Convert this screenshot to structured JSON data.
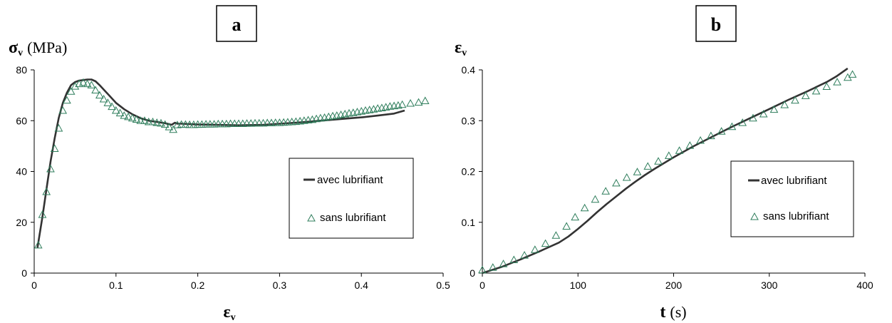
{
  "chart_data": [
    {
      "type": "line",
      "panel_label": "a",
      "ylabel": {
        "symbol": "σ",
        "sub": "v",
        "unit": "(MPa)"
      },
      "xlabel": {
        "symbol": "ε",
        "sub": "v",
        "unit": ""
      },
      "xlim": [
        0,
        0.5
      ],
      "ylim": [
        0,
        80
      ],
      "xticks": [
        "0",
        "0.1",
        "0.2",
        "0.3",
        "0.4",
        "0.5"
      ],
      "yticks": [
        "0",
        "20",
        "40",
        "60",
        "80"
      ],
      "grid": false,
      "legend_position": "right",
      "series": [
        {
          "name": "avec lubrifiant",
          "style": "line",
          "color": "#333333",
          "x": [
            0.004,
            0.01,
            0.015,
            0.02,
            0.025,
            0.03,
            0.035,
            0.04,
            0.045,
            0.05,
            0.055,
            0.06,
            0.065,
            0.07,
            0.075,
            0.08,
            0.09,
            0.1,
            0.11,
            0.12,
            0.13,
            0.14,
            0.15,
            0.16,
            0.168,
            0.172,
            0.175,
            0.18,
            0.2,
            0.22,
            0.25,
            0.28,
            0.3,
            0.32,
            0.35,
            0.38,
            0.4,
            0.42,
            0.44,
            0.453
          ],
          "y": [
            10,
            22,
            33,
            44,
            53,
            61,
            67,
            71,
            74,
            75.2,
            75.8,
            76,
            76.2,
            76.2,
            75.5,
            74,
            70.5,
            67,
            64.5,
            62.5,
            61,
            60,
            59.5,
            59,
            58.4,
            59.2,
            58.8,
            58.8,
            58.5,
            58.4,
            58.2,
            58.4,
            58.8,
            59.2,
            60,
            60.8,
            61.3,
            62,
            62.8,
            64
          ]
        },
        {
          "name": "sans lubrifiant",
          "style": "marker",
          "marker": "triangle",
          "color": "#2e7d5b",
          "x": [
            0.005,
            0.01,
            0.015,
            0.02,
            0.025,
            0.03,
            0.035,
            0.04,
            0.045,
            0.05,
            0.055,
            0.06,
            0.065,
            0.07,
            0.075,
            0.08,
            0.085,
            0.09,
            0.095,
            0.1,
            0.105,
            0.11,
            0.115,
            0.12,
            0.125,
            0.13,
            0.135,
            0.14,
            0.145,
            0.15,
            0.155,
            0.16,
            0.165,
            0.17,
            0.175,
            0.18,
            0.185,
            0.19,
            0.195,
            0.2,
            0.205,
            0.21,
            0.215,
            0.22,
            0.225,
            0.23,
            0.235,
            0.24,
            0.245,
            0.25,
            0.255,
            0.26,
            0.265,
            0.27,
            0.275,
            0.28,
            0.285,
            0.29,
            0.295,
            0.3,
            0.305,
            0.31,
            0.315,
            0.32,
            0.325,
            0.33,
            0.335,
            0.34,
            0.345,
            0.35,
            0.355,
            0.36,
            0.365,
            0.37,
            0.375,
            0.38,
            0.385,
            0.39,
            0.395,
            0.4,
            0.405,
            0.41,
            0.415,
            0.42,
            0.425,
            0.43,
            0.435,
            0.44,
            0.445,
            0.45,
            0.46,
            0.47,
            0.478
          ],
          "y": [
            11,
            23,
            32,
            41,
            49,
            57,
            64,
            68,
            71.5,
            73.5,
            74.5,
            75,
            74.5,
            74,
            72,
            70,
            68.5,
            67,
            65.5,
            64,
            63,
            62,
            61.5,
            61,
            60.5,
            60,
            60,
            59.5,
            59.5,
            59.2,
            59,
            58.5,
            57.5,
            56.5,
            58.3,
            58.5,
            58.5,
            58.4,
            58.4,
            58.5,
            58.5,
            58.6,
            58.6,
            58.6,
            58.7,
            58.7,
            58.7,
            58.8,
            58.8,
            58.8,
            58.8,
            58.9,
            58.9,
            59,
            59,
            59,
            59.1,
            59.1,
            59.2,
            59.2,
            59.3,
            59.4,
            59.5,
            59.6,
            59.8,
            60,
            60.2,
            60.4,
            60.7,
            61,
            61.2,
            61.5,
            61.8,
            62,
            62.3,
            62.6,
            62.9,
            63.1,
            63.4,
            63.7,
            64,
            64.2,
            64.5,
            64.8,
            65,
            65.3,
            65.6,
            65.8,
            66,
            66.3,
            66.8,
            67.2,
            67.8
          ]
        }
      ]
    },
    {
      "type": "line",
      "panel_label": "b",
      "ylabel": {
        "symbol": "ε",
        "sub": "v",
        "unit": ""
      },
      "xlabel": {
        "symbol": "t",
        "sub": "",
        "unit": "(s)"
      },
      "xlim": [
        0,
        400
      ],
      "ylim": [
        0,
        0.4
      ],
      "xticks": [
        "0",
        "100",
        "200",
        "300",
        "400"
      ],
      "yticks": [
        "0",
        "0.1",
        "0.2",
        "0.3",
        "0.4"
      ],
      "grid": false,
      "legend_position": "right",
      "series": [
        {
          "name": "avec lubrifiant",
          "style": "line",
          "color": "#333333",
          "x": [
            0,
            20,
            40,
            60,
            80,
            90,
            100,
            110,
            120,
            130,
            140,
            150,
            160,
            170,
            180,
            200,
            220,
            240,
            260,
            280,
            300,
            320,
            340,
            360,
            370,
            382
          ],
          "y": [
            0,
            0.012,
            0.027,
            0.043,
            0.06,
            0.072,
            0.087,
            0.103,
            0.12,
            0.136,
            0.151,
            0.166,
            0.18,
            0.193,
            0.205,
            0.228,
            0.249,
            0.268,
            0.287,
            0.305,
            0.323,
            0.341,
            0.358,
            0.376,
            0.387,
            0.403
          ]
        },
        {
          "name": "sans lubrifiant",
          "style": "marker",
          "marker": "triangle",
          "color": "#2e7d5b",
          "x": [
            0,
            11,
            22,
            33,
            44,
            55,
            66,
            77,
            88,
            97,
            107,
            118,
            129,
            140,
            151,
            162,
            173,
            184,
            195,
            206,
            217,
            228,
            239,
            250,
            261,
            272,
            283,
            294,
            305,
            316,
            327,
            338,
            349,
            360,
            371,
            382,
            387
          ],
          "y": [
            0.006,
            0.011,
            0.018,
            0.026,
            0.035,
            0.046,
            0.058,
            0.074,
            0.092,
            0.11,
            0.128,
            0.145,
            0.161,
            0.177,
            0.188,
            0.199,
            0.21,
            0.22,
            0.231,
            0.241,
            0.251,
            0.261,
            0.27,
            0.279,
            0.288,
            0.296,
            0.305,
            0.313,
            0.322,
            0.331,
            0.34,
            0.349,
            0.358,
            0.367,
            0.376,
            0.385,
            0.391
          ]
        }
      ]
    }
  ]
}
